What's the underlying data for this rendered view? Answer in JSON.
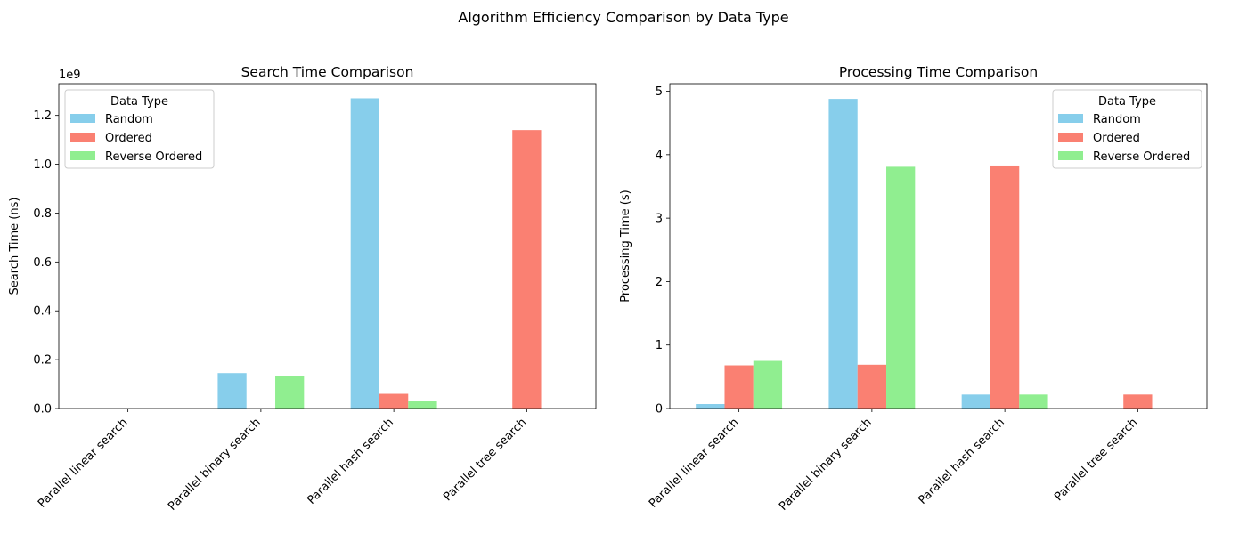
{
  "suptitle": "Algorithm Efficiency Comparison by Data Type",
  "chart_data": [
    {
      "type": "bar",
      "title": "Search Time Comparison",
      "xlabel": "",
      "ylabel": "Search Time (ns)",
      "y_offset_text": "1e9",
      "ylim": [
        0,
        1.33
      ],
      "yticks": [
        0.0,
        0.2,
        0.4,
        0.6,
        0.8,
        1.0,
        1.2
      ],
      "ytick_labels": [
        "0.0",
        "0.2",
        "0.4",
        "0.6",
        "0.8",
        "1.0",
        "1.2"
      ],
      "categories": [
        "Parallel linear search",
        "Parallel binary search",
        "Parallel hash search",
        "Parallel tree search"
      ],
      "series": [
        {
          "name": "Random",
          "color": "#87CEEB",
          "values": [
            0,
            0.145,
            1.27,
            0
          ]
        },
        {
          "name": "Ordered",
          "color": "#FA8072",
          "values": [
            0,
            0,
            0.06,
            1.14
          ]
        },
        {
          "name": "Reverse Ordered",
          "color": "#90EE90",
          "values": [
            0,
            0.133,
            0.03,
            0
          ]
        }
      ],
      "legend_title": "Data Type",
      "legend_position": "upper-left"
    },
    {
      "type": "bar",
      "title": "Processing Time Comparison",
      "xlabel": "",
      "ylabel": "Processing Time (s)",
      "y_offset_text": "",
      "ylim": [
        0,
        5.12
      ],
      "yticks": [
        0,
        1,
        2,
        3,
        4,
        5
      ],
      "ytick_labels": [
        "0",
        "1",
        "2",
        "3",
        "4",
        "5"
      ],
      "categories": [
        "Parallel linear search",
        "Parallel binary search",
        "Parallel hash search",
        "Parallel tree search"
      ],
      "series": [
        {
          "name": "Random",
          "color": "#87CEEB",
          "values": [
            0.07,
            4.88,
            0.22,
            0
          ]
        },
        {
          "name": "Ordered",
          "color": "#FA8072",
          "values": [
            0.68,
            0.69,
            3.83,
            0.22
          ]
        },
        {
          "name": "Reverse Ordered",
          "color": "#90EE90",
          "values": [
            0.75,
            3.81,
            0.22,
            0
          ]
        }
      ],
      "legend_title": "Data Type",
      "legend_position": "upper-right"
    }
  ]
}
